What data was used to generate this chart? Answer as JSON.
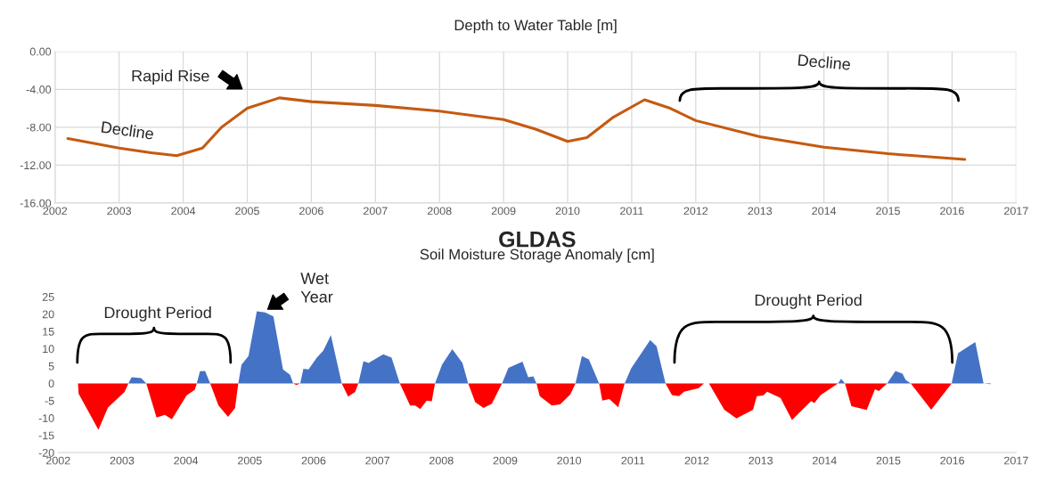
{
  "chart_data": [
    {
      "type": "line",
      "title": "Depth to Water Table [m]",
      "x": [
        2002.2,
        2003.0,
        2003.5,
        2003.9,
        2004.3,
        2004.6,
        2005.0,
        2005.5,
        2006.0,
        2007.0,
        2008.0,
        2009.0,
        2009.5,
        2010.0,
        2010.3,
        2010.7,
        2011.2,
        2011.6,
        2012.0,
        2013.0,
        2014.0,
        2015.0,
        2016.2
      ],
      "series": [
        {
          "color": "#c55a11",
          "values": [
            -9.2,
            -10.2,
            -10.7,
            -11.0,
            -10.2,
            -8.0,
            -6.0,
            -4.9,
            -5.3,
            -5.7,
            -6.3,
            -7.2,
            -8.2,
            -9.5,
            -9.1,
            -7.0,
            -5.1,
            -6.0,
            -7.3,
            -9.0,
            -10.1,
            -10.8,
            -11.4
          ]
        }
      ],
      "xlim": [
        2002,
        2017
      ],
      "xticks": [
        2002,
        2003,
        2004,
        2005,
        2006,
        2007,
        2008,
        2009,
        2010,
        2011,
        2012,
        2013,
        2014,
        2015,
        2016,
        2017
      ],
      "ylim": [
        -16,
        0
      ],
      "yticks": [
        {
          "value": 0,
          "label": "0.00"
        },
        {
          "value": -4,
          "label": "-4.00"
        },
        {
          "value": -8,
          "label": "-8.00"
        },
        {
          "value": -12,
          "label": "-12.00"
        },
        {
          "value": -16,
          "label": "-16.00"
        }
      ],
      "grid": true,
      "annotations": [
        "Rapid Rise",
        "Decline",
        "Decline"
      ]
    },
    {
      "type": "area",
      "title": "GLDAS",
      "subtitle": "Soil Moisture Storage Anomaly [cm]",
      "x": [
        2002.31,
        2002.32,
        2002.63,
        2002.78,
        2003.04,
        2003.1,
        2003.15,
        2003.3,
        2003.38,
        2003.54,
        2003.67,
        2003.78,
        2004.01,
        2004.14,
        2004.17,
        2004.22,
        2004.3,
        2004.38,
        2004.51,
        2004.66,
        2004.77,
        2004.82,
        2004.87,
        2004.98,
        2005.11,
        2005.24,
        2005.37,
        2005.52,
        2005.63,
        2005.68,
        2005.73,
        2005.79,
        2005.84,
        2005.92,
        2006.05,
        2006.15,
        2006.27,
        2006.44,
        2006.54,
        2006.65,
        2006.7,
        2006.78,
        2006.86,
        2007.09,
        2007.22,
        2007.35,
        2007.51,
        2007.59,
        2007.67,
        2007.77,
        2007.85,
        2007.9,
        2008.01,
        2008.17,
        2008.33,
        2008.42,
        2008.53,
        2008.66,
        2008.79,
        2008.95,
        2009.05,
        2009.27,
        2009.36,
        2009.44,
        2009.49,
        2009.54,
        2009.73,
        2009.86,
        2010.02,
        2010.1,
        2010.2,
        2010.31,
        2010.47,
        2010.52,
        2010.63,
        2010.77,
        2010.87,
        2010.97,
        2011.27,
        2011.37,
        2011.51,
        2011.61,
        2011.72,
        2011.8,
        2012.03,
        2012.11,
        2012.19,
        2012.43,
        2012.62,
        2012.88,
        2012.94,
        2013.04,
        2013.1,
        2013.31,
        2013.49,
        2013.79,
        2013.84,
        2013.94,
        2014.21,
        2014.26,
        2014.32,
        2014.42,
        2014.66,
        2014.79,
        2014.85,
        2014.98,
        2015.11,
        2015.22,
        2015.27,
        2015.35,
        2015.67,
        2015.99,
        2016.09,
        2016.36,
        2016.49,
        2016.6
      ],
      "series": [
        {
          "color": "#4472c4",
          "values": [
            0,
            0,
            0,
            0,
            0,
            0,
            1.8,
            1.5,
            0,
            0,
            0,
            0,
            0,
            0,
            0,
            3.5,
            3.6,
            0,
            0,
            0,
            0,
            0,
            5.4,
            7.9,
            20.8,
            20.5,
            19.3,
            4,
            2.5,
            0,
            0,
            0,
            4.2,
            4,
            7.4,
            9.4,
            13.9,
            0,
            0,
            0,
            0,
            6.4,
            5.9,
            8.4,
            7.4,
            0,
            0,
            0,
            0,
            0,
            0,
            0,
            5.4,
            9.9,
            5.9,
            0,
            0,
            0,
            0,
            0,
            4.5,
            6.3,
            1.8,
            2,
            0,
            0,
            0,
            0,
            0,
            0,
            7.9,
            6.9,
            0,
            0,
            0,
            0,
            0,
            4.3,
            12.5,
            10.7,
            0,
            0,
            0,
            0,
            0,
            0,
            0,
            0,
            0,
            0,
            0,
            0,
            0,
            0,
            0,
            0,
            0,
            0,
            0,
            1.3,
            0,
            0,
            0,
            0,
            0,
            0,
            3.6,
            2.8,
            1,
            0,
            0,
            0,
            8.7,
            11.9,
            0,
            0
          ]
        },
        {
          "color": "#ff0000",
          "values": [
            0,
            -3,
            -13.4,
            -7,
            -2.5,
            0,
            0,
            0,
            0,
            -9.9,
            -9.1,
            -10.4,
            -3.5,
            -1.8,
            0,
            0,
            0,
            0,
            -6.4,
            -9.7,
            -7.1,
            0,
            0,
            0,
            0,
            0,
            0,
            0,
            0,
            0,
            -0.5,
            0,
            0,
            0,
            0,
            0,
            0,
            0,
            -3.8,
            -2.5,
            0,
            0,
            0,
            0,
            0,
            0,
            -6.4,
            -6.4,
            -7.4,
            -5,
            -5.2,
            0,
            0,
            0,
            0,
            0,
            -5.4,
            -7.1,
            -5.9,
            0,
            0,
            0,
            0,
            0,
            0,
            -3.7,
            -6.4,
            -6.1,
            -3.2,
            0,
            0,
            0,
            0,
            -5,
            -4.5,
            -6.9,
            0,
            0,
            0,
            0,
            0,
            -3.4,
            -3.7,
            -2.4,
            -1.4,
            0,
            0,
            -7.6,
            -10.1,
            -7.6,
            -3.7,
            -3.5,
            -2.4,
            -4.2,
            -10.6,
            -5.1,
            -5.7,
            -3.4,
            0,
            0,
            0,
            -6.6,
            -7.7,
            -1.7,
            -2.2,
            0,
            0,
            0,
            0,
            0,
            -7.6,
            0,
            0,
            0,
            0,
            -0.2
          ]
        }
      ],
      "xlim": [
        2002,
        2017
      ],
      "xticks": [
        2002,
        2003,
        2004,
        2005,
        2006,
        2007,
        2008,
        2009,
        2010,
        2011,
        2012,
        2013,
        2014,
        2015,
        2016,
        2017
      ],
      "ylim": [
        -20,
        25
      ],
      "yticks": [
        25,
        20,
        15,
        10,
        5,
        0,
        -5,
        -10,
        -15,
        -20
      ],
      "annotations": [
        "Wet\nYear",
        "Drought Period",
        "Drought Period"
      ]
    }
  ]
}
